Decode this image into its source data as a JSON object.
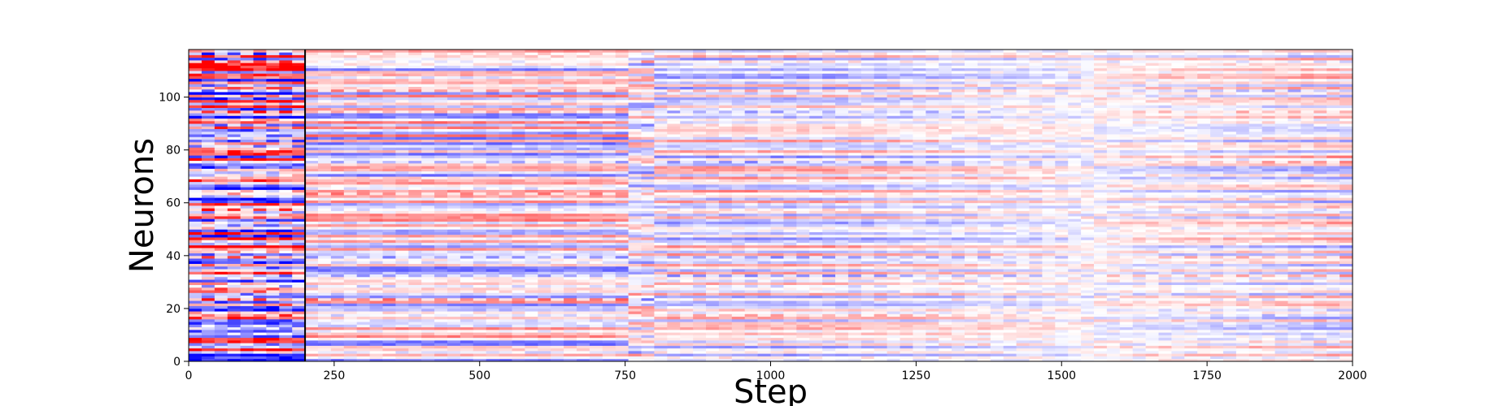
{
  "chart_data": {
    "type": "heatmap",
    "title": "",
    "xlabel": "Step",
    "ylabel": "Neurons",
    "xlim": [
      0,
      2000
    ],
    "ylim": [
      0,
      118
    ],
    "x_ticks": [
      0,
      250,
      500,
      750,
      1000,
      1250,
      1500,
      1750,
      2000
    ],
    "y_ticks": [
      0,
      20,
      40,
      60,
      80,
      100
    ],
    "n_neurons": 118,
    "colormap": "bwr",
    "colors": {
      "low": "#0000ff",
      "mid": "#ffffff",
      "high": "#ff0000"
    },
    "marker_line_x": 200,
    "segment_boundaries": [
      200,
      760,
      790
    ],
    "grid": false,
    "legend": "none"
  }
}
